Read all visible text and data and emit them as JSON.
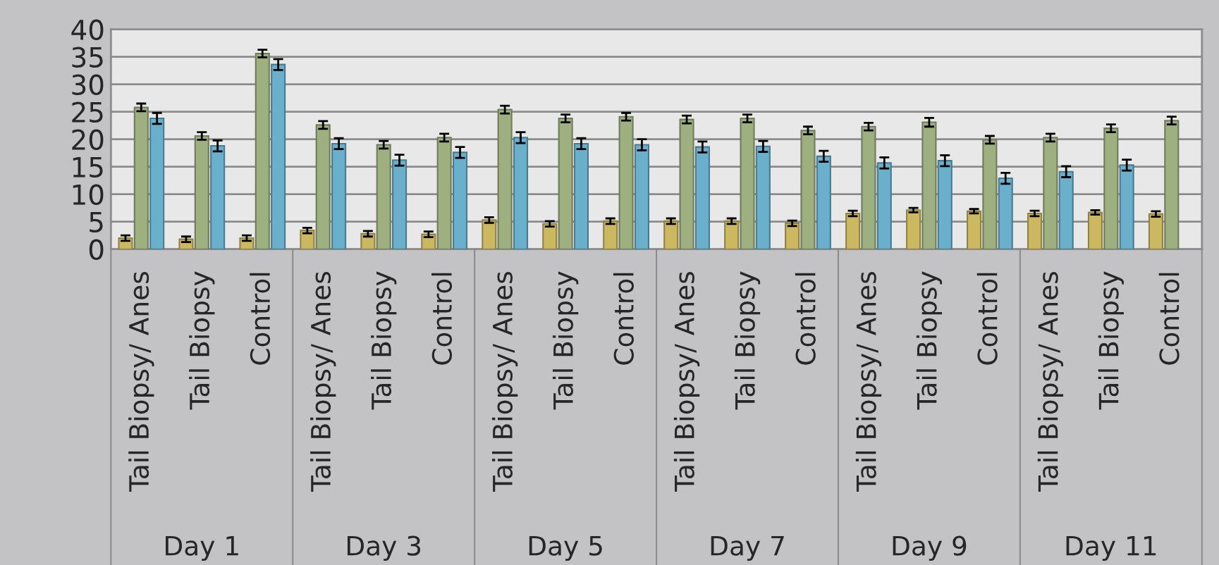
{
  "chart_data": {
    "type": "bar",
    "categories": [
      "Tail Biopsy/ Anes",
      "Tail Biopsy",
      "Control",
      "Tail Biopsy/ Anes",
      "Tail Biopsy",
      "Control",
      "Tail Biopsy/ Anes",
      "Tail Biopsy",
      "Control",
      "Tail Biopsy/ Anes",
      "Tail Biopsy",
      "Control",
      "Tail Biopsy/ Anes",
      "Tail Biopsy",
      "Control",
      "Tail Biopsy/ Anes",
      "Tail Biopsy",
      "Control"
    ],
    "annotations": [
      "Day 1",
      "Day 3",
      "Day 5",
      "Day 7",
      "Day 9",
      "Day 11"
    ],
    "series": [
      {
        "color": "#cdb862",
        "values": [
          2.0,
          1.8,
          2.0,
          3.4,
          2.8,
          2.7,
          5.3,
          4.6,
          5.1,
          5.1,
          5.1,
          4.7,
          6.5,
          7.1,
          6.9,
          6.5,
          6.7,
          6.4
        ],
        "errors": [
          0.5,
          0.5,
          0.5,
          0.5,
          0.5,
          0.5,
          0.5,
          0.5,
          0.5,
          0.5,
          0.5,
          0.5,
          0.5,
          0.4,
          0.4,
          0.5,
          0.4,
          0.5
        ]
      },
      {
        "color": "#9eb080",
        "values": [
          25.8,
          20.6,
          35.6,
          22.6,
          19.0,
          20.3,
          25.4,
          23.8,
          24.1,
          23.6,
          23.8,
          21.6,
          22.3,
          23.1,
          19.9,
          20.3,
          22.0,
          23.4
        ],
        "errors": [
          0.7,
          0.7,
          0.7,
          0.7,
          0.7,
          0.7,
          0.7,
          0.7,
          0.7,
          0.7,
          0.7,
          0.7,
          0.7,
          0.8,
          0.7,
          0.7,
          0.7,
          0.7
        ]
      },
      {
        "color": "#6aafcb",
        "values": [
          23.8,
          18.8,
          33.6,
          19.2,
          16.2,
          17.6,
          20.3,
          19.2,
          19.0,
          18.6,
          18.7,
          16.9,
          15.7,
          16.1,
          12.9,
          14.1,
          15.3,
          null
        ],
        "errors": [
          1.0,
          1.0,
          1.0,
          1.0,
          1.0,
          1.0,
          1.0,
          1.0,
          1.0,
          1.0,
          1.0,
          1.0,
          1.0,
          1.0,
          1.0,
          1.0,
          1.0,
          null
        ]
      }
    ],
    "ylim": [
      0,
      40
    ],
    "yticks": [
      0,
      5,
      10,
      15,
      20,
      25,
      30,
      35,
      40
    ],
    "grid": "y",
    "legend": false
  }
}
